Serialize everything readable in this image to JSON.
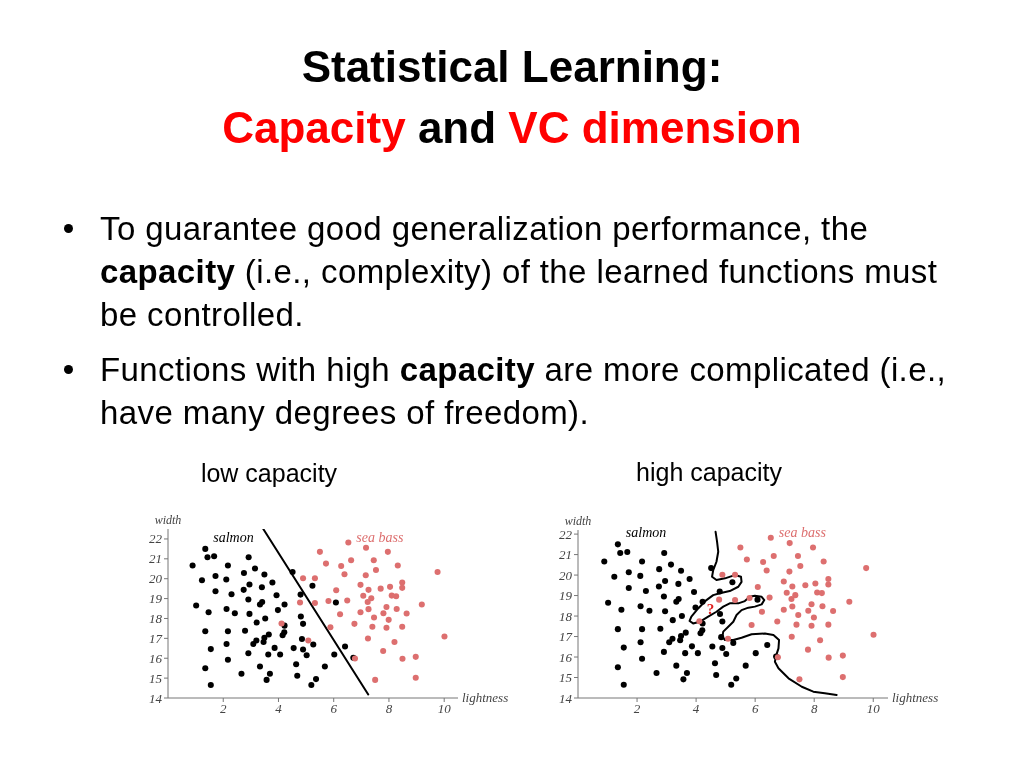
{
  "chart_data": [
    {
      "type": "other",
      "title": "Statistical Learning: Capacity and VC dimension",
      "annotations": [
        "To guarantee good generalization performance, the capacity (i.e., complexity) of the learned functions must be controlled.",
        "Functions with high capacity are more complicated (i.e., have many degrees of freedom)."
      ]
    },
    {
      "type": "scatter",
      "title": "low capacity",
      "xlabel": "lightness",
      "ylabel": "width",
      "xlim": [
        0,
        10.5
      ],
      "ylim": [
        14,
        22.5
      ],
      "xticks": [
        2,
        4,
        6,
        8,
        10
      ],
      "yticks": [
        14,
        15,
        16,
        17,
        18,
        19,
        20,
        21,
        22
      ],
      "marker": "circle",
      "series": [
        {
          "name": "salmon",
          "color": "#000000",
          "x": [
            1.35,
            1.43,
            1.67,
            0.89,
            2.92,
            2.17,
            1.23,
            1.72,
            2.11,
            2.75,
            3.15,
            3.49,
            2.95,
            3.4,
            3.78,
            4.51,
            1.72,
            2.3,
            2.74,
            2.91,
            3.41,
            3.33,
            3.93,
            4.8,
            1.02,
            1.47,
            2.12,
            2.42,
            2.95,
            3.52,
            3.98,
            4.22,
            4.81,
            3.21,
            4.22,
            4.89,
            1.35,
            2.17,
            2.79,
            4.21,
            4.15,
            3.65,
            3.49,
            3.2,
            3.09,
            3.46,
            4.85,
            2.12,
            1.55,
            3.86,
            3.63,
            4.06,
            4.55,
            4.89,
            5.02,
            2.91,
            2.17,
            1.35,
            3.33,
            4.64,
            2.66,
            3.69,
            3.57,
            4.68,
            1.55,
            5.23,
            6.08,
            5.26,
            6.02,
            6.41,
            6.71,
            5.68,
            5.36,
            5.19
          ],
          "values": [
            21.5,
            21.08,
            21.13,
            20.66,
            21.08,
            20.66,
            19.92,
            20.14,
            19.96,
            20.29,
            20.51,
            20.21,
            19.71,
            19.57,
            19.81,
            20.34,
            19.37,
            19.22,
            19.44,
            18.95,
            18.83,
            18.7,
            19.17,
            19.2,
            18.65,
            18.31,
            18.48,
            18.26,
            18.23,
            18,
            18.42,
            18.7,
            18.1,
            17.8,
            17.64,
            17.73,
            17.36,
            17.36,
            17.38,
            17.31,
            17.16,
            17.19,
            17.03,
            16.89,
            16.72,
            16.82,
            16.97,
            16.72,
            16.46,
            16.52,
            16.19,
            16.19,
            16.51,
            16.44,
            16.15,
            16.25,
            15.92,
            15.5,
            15.58,
            15.7,
            15.22,
            15.22,
            14.91,
            15.12,
            14.65,
            19.65,
            18.8,
            16.69,
            16.19,
            16.59,
            16.02,
            15.58,
            14.95,
            14.65
          ]
        },
        {
          "name": "sea bass",
          "color": "#dd6f6f",
          "x": [
            4.89,
            4.78,
            4.11,
            5.08,
            6.53,
            5.5,
            7.17,
            7.96,
            5.72,
            6.27,
            6.63,
            7.45,
            7.53,
            8.32,
            6.39,
            7.16,
            9.76,
            5.32,
            6.97,
            7.26,
            7.7,
            8.04,
            8.48,
            8.48,
            6.09,
            7.07,
            7.36,
            8.1,
            8.26,
            7.23,
            6.49,
            5.81,
            5.32,
            9.19,
            7.91,
            8.28,
            7.26,
            6.23,
            6.97,
            7.8,
            8.64,
            7.46,
            7.99,
            6.75,
            8.48,
            7.4,
            7.91,
            5.88,
            7.24,
            8.2,
            10.01,
            7.79,
            8.49,
            8.97,
            6.77,
            7.5,
            8.97
          ],
          "values": [
            20.02,
            18.8,
            17.75,
            16.89,
            21.82,
            21.35,
            21.56,
            21.35,
            20.76,
            20.64,
            20.93,
            20.93,
            20.44,
            20.66,
            20.22,
            20.17,
            20.34,
            20.02,
            19.69,
            19.44,
            19.5,
            19.59,
            19.81,
            19.54,
            19.42,
            19.14,
            19.02,
            19.15,
            19.12,
            18.83,
            18.9,
            18.88,
            18.78,
            18.7,
            18.58,
            18.48,
            18.47,
            18.21,
            18.31,
            18.26,
            18.25,
            18.05,
            17.93,
            17.73,
            17.58,
            17.58,
            17.53,
            17.56,
            16.99,
            16.82,
            17.09,
            16.36,
            15.97,
            16.07,
            15.99,
            14.91,
            15.02
          ]
        },
        {
          "type": "line",
          "marker": "none",
          "color": "#000000",
          "x": [
            3.45,
            7.25
          ],
          "values": [
            22.5,
            14.18
          ]
        }
      ]
    },
    {
      "type": "scatter",
      "title": "high capacity",
      "xlabel": "lightness",
      "ylabel": "width",
      "xlim": [
        0,
        10.5
      ],
      "ylim": [
        14,
        22.2
      ],
      "xticks": [
        2,
        4,
        6,
        8,
        10
      ],
      "yticks": [
        14,
        15,
        16,
        17,
        18,
        19,
        20,
        21,
        22
      ],
      "marker": "circle",
      "series": [
        {
          "name": "salmon",
          "color": "#000000",
          "x": [
            1.35,
            1.43,
            1.67,
            0.89,
            2.92,
            2.17,
            1.23,
            1.72,
            2.11,
            2.75,
            3.15,
            3.49,
            2.95,
            3.4,
            3.78,
            4.51,
            1.72,
            2.3,
            2.74,
            2.91,
            3.41,
            3.33,
            3.93,
            4.8,
            1.02,
            1.47,
            2.12,
            2.42,
            2.95,
            3.52,
            3.98,
            4.22,
            4.81,
            3.21,
            4.22,
            4.89,
            1.35,
            2.17,
            2.79,
            4.21,
            4.15,
            3.65,
            3.49,
            3.2,
            3.09,
            3.46,
            4.85,
            2.12,
            1.55,
            3.86,
            3.63,
            4.06,
            4.55,
            4.89,
            5.02,
            2.91,
            2.17,
            1.35,
            3.33,
            4.64,
            2.66,
            3.69,
            3.57,
            4.68,
            1.55,
            5.23,
            6.08,
            5.26,
            6.02,
            6.41,
            6.71,
            5.68,
            5.36,
            5.19
          ],
          "values": [
            21.5,
            21.08,
            21.13,
            20.66,
            21.08,
            20.66,
            19.92,
            20.14,
            19.96,
            20.29,
            20.51,
            20.21,
            19.71,
            19.57,
            19.81,
            20.34,
            19.37,
            19.22,
            19.44,
            18.95,
            18.83,
            18.7,
            19.17,
            19.2,
            18.65,
            18.31,
            18.48,
            18.26,
            18.23,
            18,
            18.42,
            18.7,
            18.1,
            17.8,
            17.64,
            17.73,
            17.36,
            17.36,
            17.38,
            17.31,
            17.16,
            17.19,
            17.03,
            16.89,
            16.72,
            16.82,
            16.97,
            16.72,
            16.46,
            16.52,
            16.19,
            16.19,
            16.51,
            16.44,
            16.15,
            16.25,
            15.92,
            15.5,
            15.58,
            15.7,
            15.22,
            15.22,
            14.91,
            15.12,
            14.65,
            19.65,
            18.8,
            16.69,
            16.19,
            16.59,
            16.02,
            15.58,
            14.95,
            14.65
          ]
        },
        {
          "name": "sea bass",
          "color": "#dd6f6f",
          "x": [
            4.89,
            4.78,
            4.11,
            5.08,
            6.53,
            5.5,
            7.17,
            7.96,
            5.72,
            6.27,
            6.63,
            7.45,
            7.53,
            8.32,
            6.39,
            7.16,
            9.76,
            5.32,
            6.97,
            7.26,
            7.7,
            8.04,
            8.48,
            8.48,
            6.09,
            7.07,
            7.36,
            8.1,
            8.26,
            7.23,
            6.49,
            5.81,
            5.32,
            9.19,
            7.91,
            8.28,
            7.26,
            6.23,
            6.97,
            7.8,
            8.64,
            7.46,
            7.99,
            6.75,
            8.48,
            7.4,
            7.91,
            5.88,
            7.24,
            8.2,
            10.01,
            7.79,
            8.49,
            8.97,
            6.77,
            7.5,
            8.97
          ],
          "values": [
            20.02,
            18.8,
            17.75,
            16.89,
            21.82,
            21.35,
            21.56,
            21.35,
            20.76,
            20.64,
            20.93,
            20.93,
            20.44,
            20.66,
            20.22,
            20.17,
            20.34,
            20.02,
            19.69,
            19.44,
            19.5,
            19.59,
            19.81,
            19.54,
            19.42,
            19.14,
            19.02,
            19.15,
            19.12,
            18.83,
            18.9,
            18.88,
            18.78,
            18.7,
            18.58,
            18.48,
            18.47,
            18.21,
            18.31,
            18.26,
            18.25,
            18.05,
            17.93,
            17.73,
            17.58,
            17.58,
            17.53,
            17.56,
            16.99,
            16.82,
            17.09,
            16.36,
            15.97,
            16.07,
            15.99,
            14.91,
            15.02
          ]
        },
        {
          "type": "line",
          "marker": "none",
          "color": "#000000",
          "x": [
            4.66,
            4.71,
            4.75,
            4.69,
            4.58,
            4.54,
            4.69,
            4.98,
            5.31,
            5.52,
            5.54,
            5.43,
            5.14,
            4.8,
            4.58,
            4.35,
            4.07,
            3.84,
            3.78,
            3.9,
            4.12,
            4.41,
            4.69,
            4.92,
            5.14,
            5.43,
            5.65,
            5.82,
            5.99,
            6.22,
            6.31,
            6.22,
            5.99,
            5.77,
            5.54,
            5.37,
            5.26,
            5.09,
            4.92,
            4.89,
            4.98,
            5.26,
            5.54,
            5.88,
            6.33,
            6.62,
            6.81,
            6.79,
            6.7,
            6.67,
            6.79,
            7.13,
            7.58,
            7.97,
            8.36,
            8.76
          ],
          "values": [
            22.11,
            21.63,
            21.14,
            20.65,
            20.24,
            19.92,
            19.76,
            19.84,
            20,
            19.92,
            19.67,
            19.43,
            19.22,
            19.11,
            19.02,
            18.78,
            18.37,
            17.97,
            17.76,
            17.64,
            17.72,
            17.97,
            18.21,
            18.46,
            18.62,
            18.62,
            18.73,
            18.94,
            18.99,
            18.94,
            18.78,
            18.57,
            18.46,
            18.41,
            18.29,
            18.05,
            17.72,
            17.48,
            17.24,
            16.99,
            16.83,
            16.83,
            16.94,
            17.11,
            17.15,
            17.07,
            16.83,
            16.42,
            16.02,
            15.77,
            15.45,
            14.96,
            14.55,
            14.31,
            14.23,
            14.15
          ]
        }
      ],
      "annotations": [
        {
          "text": "?",
          "x": 4.49,
          "y": 18.35
        }
      ]
    }
  ]
}
